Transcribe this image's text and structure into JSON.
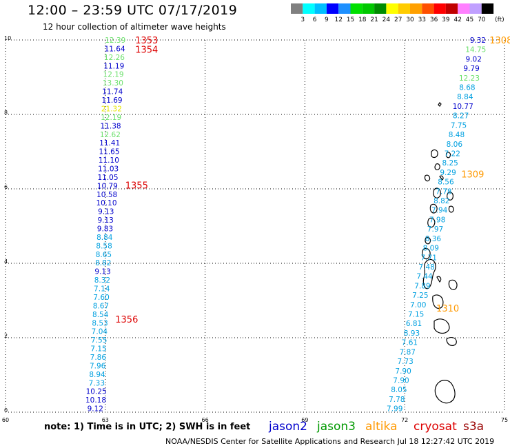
{
  "header": {
    "title": "12:00 – 23:59 UTC 07/17/2019",
    "subtitle": "12 hour collection of altimeter wave heights"
  },
  "colorbar": {
    "labels": [
      "3",
      "6",
      "9",
      "12",
      "15",
      "18",
      "21",
      "24",
      "27",
      "30",
      "33",
      "36",
      "39",
      "42",
      "45",
      "70"
    ],
    "unit": "(ft)",
    "colors": [
      "#808080",
      "#00ffff",
      "#00bfff",
      "#0000ff",
      "#1e90ff",
      "#00e000",
      "#00c800",
      "#008c00",
      "#ffff00",
      "#ffcc00",
      "#ffa000",
      "#ff5000",
      "#ff0000",
      "#c00000",
      "#ff80ff",
      "#c0a0ff",
      "#000000"
    ]
  },
  "footer": {
    "note": "note:  1) Time is in UTC;  2) SWH is in feet",
    "satellites": [
      {
        "name": "jason2",
        "color": "#0000cc"
      },
      {
        "name": "jason3",
        "color": "#009900"
      },
      {
        "name": "altika",
        "color": "#ff9900"
      },
      {
        "name": "cryosat",
        "color": "#dd0000"
      },
      {
        "name": "s3a",
        "color": "#990000"
      }
    ],
    "credit": "NOAA/NESDIS Center for Satellite Applications and Research     Jul 18 12:27:42 UTC 2019"
  },
  "chart_data": {
    "type": "scatter",
    "title": "12:00 – 23:59 UTC 07/17/2019",
    "xlim": [
      60,
      75
    ],
    "ylim": [
      0,
      10
    ],
    "x_ticks": [
      "60",
      "63",
      "66",
      "69",
      "72",
      "75"
    ],
    "y_ticks": [
      "0",
      "2",
      "4",
      "6",
      "8",
      "10"
    ],
    "grid": true,
    "tracks": [
      {
        "lon_start": 63.3,
        "lon_end": 62.7,
        "lat_start": 10.0,
        "lat_end": 0.1,
        "values": [
          {
            "v": "12.39",
            "c": "#6be06b"
          },
          {
            "v": "11.64",
            "c": "#0000cc"
          },
          {
            "v": "12.26",
            "c": "#6be06b"
          },
          {
            "v": "11.19",
            "c": "#0000cc"
          },
          {
            "v": "12.19",
            "c": "#6be06b"
          },
          {
            "v": "13.30",
            "c": "#6be06b"
          },
          {
            "v": "11.74",
            "c": "#0000cc"
          },
          {
            "v": "11.69",
            "c": "#0000cc"
          },
          {
            "v": "21.32",
            "c": "#e6e600"
          },
          {
            "v": "12.19",
            "c": "#6be06b"
          },
          {
            "v": "11.38",
            "c": "#0000cc"
          },
          {
            "v": "12.62",
            "c": "#6be06b"
          },
          {
            "v": "11.41",
            "c": "#0000cc"
          },
          {
            "v": "11.65",
            "c": "#0000cc"
          },
          {
            "v": "11.10",
            "c": "#0000cc"
          },
          {
            "v": "11.03",
            "c": "#0000cc"
          },
          {
            "v": "11.05",
            "c": "#0000cc"
          },
          {
            "v": "10.79",
            "c": "#0000cc"
          },
          {
            "v": "10.58",
            "c": "#0000cc"
          },
          {
            "v": "10.10",
            "c": "#0000cc"
          },
          {
            "v": "9.13",
            "c": "#0000cc"
          },
          {
            "v": "9.13",
            "c": "#0000cc"
          },
          {
            "v": "9.83",
            "c": "#0000cc"
          },
          {
            "v": "8.84",
            "c": "#00a0e0"
          },
          {
            "v": "8.58",
            "c": "#00a0e0"
          },
          {
            "v": "8.65",
            "c": "#00a0e0"
          },
          {
            "v": "8.82",
            "c": "#00a0e0"
          },
          {
            "v": "9.13",
            "c": "#0000cc"
          },
          {
            "v": "8.32",
            "c": "#00a0e0"
          },
          {
            "v": "7.14",
            "c": "#00a0e0"
          },
          {
            "v": "7.60",
            "c": "#00a0e0"
          },
          {
            "v": "8.67",
            "c": "#00a0e0"
          },
          {
            "v": "8.54",
            "c": "#00a0e0"
          },
          {
            "v": "8.53",
            "c": "#00a0e0"
          },
          {
            "v": "7.04",
            "c": "#00a0e0"
          },
          {
            "v": "7.55",
            "c": "#00a0e0"
          },
          {
            "v": "7.15",
            "c": "#00a0e0"
          },
          {
            "v": "7.86",
            "c": "#00a0e0"
          },
          {
            "v": "7.96",
            "c": "#00a0e0"
          },
          {
            "v": "8.94",
            "c": "#00a0e0"
          },
          {
            "v": "7.33",
            "c": "#00a0e0"
          },
          {
            "v": "10.25",
            "c": "#0000cc"
          },
          {
            "v": "10.18",
            "c": "#0000cc"
          },
          {
            "v": "9.12",
            "c": "#0000cc"
          }
        ]
      },
      {
        "lon_start": 74.2,
        "lon_end": 71.7,
        "lat_start": 10.0,
        "lat_end": 0.1,
        "values": [
          {
            "v": "9.32",
            "c": "#0000cc"
          },
          {
            "v": "14.75",
            "c": "#6be06b"
          },
          {
            "v": "9.02",
            "c": "#0000cc"
          },
          {
            "v": "9.79",
            "c": "#0000cc"
          },
          {
            "v": "12.23",
            "c": "#6be06b"
          },
          {
            "v": "8.68",
            "c": "#00a0e0"
          },
          {
            "v": "8.84",
            "c": "#00a0e0"
          },
          {
            "v": "10.77",
            "c": "#0000cc"
          },
          {
            "v": "8.27",
            "c": "#00a0e0"
          },
          {
            "v": "7.75",
            "c": "#00a0e0"
          },
          {
            "v": "8.48",
            "c": "#00a0e0"
          },
          {
            "v": "8.06",
            "c": "#00a0e0"
          },
          {
            "v": "7.22",
            "c": "#00a0e0"
          },
          {
            "v": "8.25",
            "c": "#00a0e0"
          },
          {
            "v": "9.29",
            "c": "#00a0e0"
          },
          {
            "v": "8.56",
            "c": "#00a0e0"
          },
          {
            "v": "7.78",
            "c": "#00a0e0"
          },
          {
            "v": "8.82",
            "c": "#00a0e0"
          },
          {
            "v": "7.94",
            "c": "#00a0e0"
          },
          {
            "v": "7.98",
            "c": "#00a0e0"
          },
          {
            "v": "7.97",
            "c": "#00a0e0"
          },
          {
            "v": "8.36",
            "c": "#00a0e0"
          },
          {
            "v": "8.09",
            "c": "#00a0e0"
          },
          {
            "v": "7.71",
            "c": "#00a0e0"
          },
          {
            "v": "7.48",
            "c": "#00a0e0"
          },
          {
            "v": "7.44",
            "c": "#00a0e0"
          },
          {
            "v": "7.89",
            "c": "#00a0e0"
          },
          {
            "v": "7.25",
            "c": "#00a0e0"
          },
          {
            "v": "7.00",
            "c": "#00a0e0"
          },
          {
            "v": "7.15",
            "c": "#00a0e0"
          },
          {
            "v": "6.81",
            "c": "#00a0e0"
          },
          {
            "v": "8.93",
            "c": "#00a0e0"
          },
          {
            "v": "7.61",
            "c": "#00a0e0"
          },
          {
            "v": "7.87",
            "c": "#00a0e0"
          },
          {
            "v": "7.73",
            "c": "#00a0e0"
          },
          {
            "v": "7.90",
            "c": "#00a0e0"
          },
          {
            "v": "7.90",
            "c": "#00a0e0"
          },
          {
            "v": "8.05",
            "c": "#00a0e0"
          },
          {
            "v": "7.78",
            "c": "#00a0e0"
          },
          {
            "v": "7.99",
            "c": "#00a0e0"
          }
        ]
      }
    ],
    "time_labels": [
      {
        "text": "1353",
        "lon": 63.9,
        "lat": 10.0,
        "c": "#dd0000"
      },
      {
        "text": "1354",
        "lon": 63.9,
        "lat": 9.75,
        "c": "#dd0000"
      },
      {
        "text": "1355",
        "lon": 63.6,
        "lat": 6.1,
        "c": "#dd0000"
      },
      {
        "text": "1356",
        "lon": 63.3,
        "lat": 2.5,
        "c": "#dd0000"
      },
      {
        "text": "1308",
        "lon": 74.55,
        "lat": 10.0,
        "c": "#ff9900"
      },
      {
        "text": "1309",
        "lon": 73.7,
        "lat": 6.4,
        "c": "#ff9900"
      },
      {
        "text": "1310",
        "lon": 72.95,
        "lat": 2.8,
        "c": "#ff9900"
      }
    ]
  }
}
